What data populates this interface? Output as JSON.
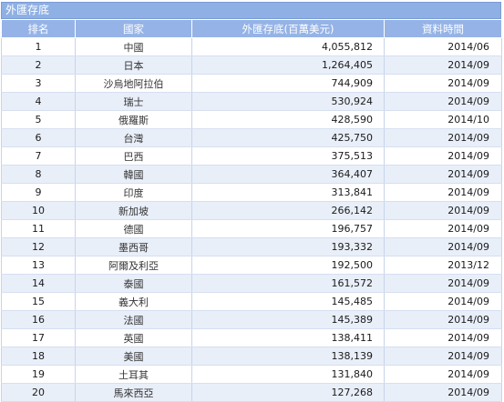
{
  "table": {
    "title": "外匯存底",
    "headers": {
      "rank": "排名",
      "country": "國家",
      "value": "外匯存底(百萬美元)",
      "date": "資料時間"
    },
    "rows": [
      {
        "rank": "1",
        "country": "中國",
        "value": "4,055,812",
        "date": "2014/06"
      },
      {
        "rank": "2",
        "country": "日本",
        "value": "1,264,405",
        "date": "2014/09"
      },
      {
        "rank": "3",
        "country": "沙烏地阿拉伯",
        "value": "744,909",
        "date": "2014/09"
      },
      {
        "rank": "4",
        "country": "瑞士",
        "value": "530,924",
        "date": "2014/09"
      },
      {
        "rank": "5",
        "country": "俄羅斯",
        "value": "428,590",
        "date": "2014/10"
      },
      {
        "rank": "6",
        "country": "台灣",
        "value": "425,750",
        "date": "2014/09"
      },
      {
        "rank": "7",
        "country": "巴西",
        "value": "375,513",
        "date": "2014/09"
      },
      {
        "rank": "8",
        "country": "韓國",
        "value": "364,407",
        "date": "2014/09"
      },
      {
        "rank": "9",
        "country": "印度",
        "value": "313,841",
        "date": "2014/09"
      },
      {
        "rank": "10",
        "country": "新加坡",
        "value": "266,142",
        "date": "2014/09"
      },
      {
        "rank": "11",
        "country": "德國",
        "value": "196,757",
        "date": "2014/09"
      },
      {
        "rank": "12",
        "country": "墨西哥",
        "value": "193,332",
        "date": "2014/09"
      },
      {
        "rank": "13",
        "country": "阿爾及利亞",
        "value": "192,500",
        "date": "2013/12"
      },
      {
        "rank": "14",
        "country": "泰國",
        "value": "161,572",
        "date": "2014/09"
      },
      {
        "rank": "15",
        "country": "義大利",
        "value": "145,485",
        "date": "2014/09"
      },
      {
        "rank": "16",
        "country": "法國",
        "value": "145,389",
        "date": "2014/09"
      },
      {
        "rank": "17",
        "country": "英國",
        "value": "138,411",
        "date": "2014/09"
      },
      {
        "rank": "18",
        "country": "美國",
        "value": "138,139",
        "date": "2014/09"
      },
      {
        "rank": "19",
        "country": "土耳其",
        "value": "131,840",
        "date": "2014/09"
      },
      {
        "rank": "20",
        "country": "馬來西亞",
        "value": "127,268",
        "date": "2014/09"
      }
    ]
  }
}
